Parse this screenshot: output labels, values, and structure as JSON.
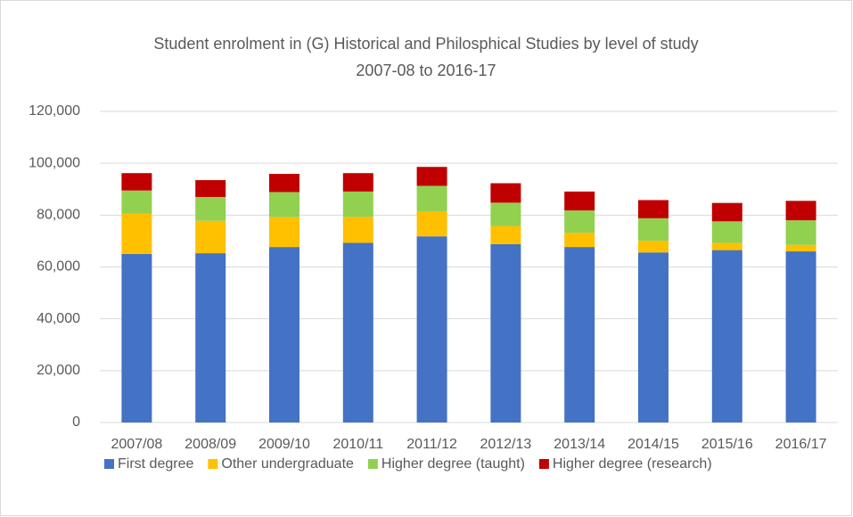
{
  "chart_data": {
    "type": "stacked_bar",
    "title": [
      "Student enrolment in (G) Historical and Philosphical Studies by level of study",
      "2007-08 to 2016-17"
    ],
    "categories": [
      "2007/08",
      "2008/09",
      "2009/10",
      "2010/11",
      "2011/12",
      "2012/13",
      "2013/14",
      "2014/15",
      "2015/16",
      "2016/17"
    ],
    "series": [
      {
        "name": "First degree",
        "color": "#4472c4",
        "values": [
          65000,
          65300,
          67700,
          69300,
          71800,
          68800,
          67700,
          65600,
          66500,
          66000
        ]
      },
      {
        "name": "Other undergraduate",
        "color": "#ffc000",
        "values": [
          15500,
          12500,
          11500,
          10000,
          9700,
          7000,
          5500,
          4500,
          2800,
          2500
        ]
      },
      {
        "name": "Higher degree (taught)",
        "color": "#92d050",
        "values": [
          9000,
          9200,
          9700,
          9800,
          9800,
          9000,
          8600,
          8700,
          8300,
          9500
        ]
      },
      {
        "name": "Higher degree (research)",
        "color": "#c00000",
        "values": [
          6700,
          6500,
          7000,
          7100,
          7300,
          7500,
          7300,
          7000,
          7100,
          7500
        ]
      }
    ],
    "ylim": [
      0,
      120000
    ],
    "yticks": [
      0,
      {
        "value": 20000,
        "label": "20,000"
      },
      {
        "value": 40000,
        "label": "40,000"
      },
      {
        "value": 60000,
        "label": "60,000"
      },
      {
        "value": 80000,
        "label": "80,000"
      },
      {
        "value": 100000,
        "label": "100,000"
      },
      {
        "value": 120000,
        "label": "120,000"
      }
    ],
    "grid": true,
    "legend": "bottom"
  }
}
